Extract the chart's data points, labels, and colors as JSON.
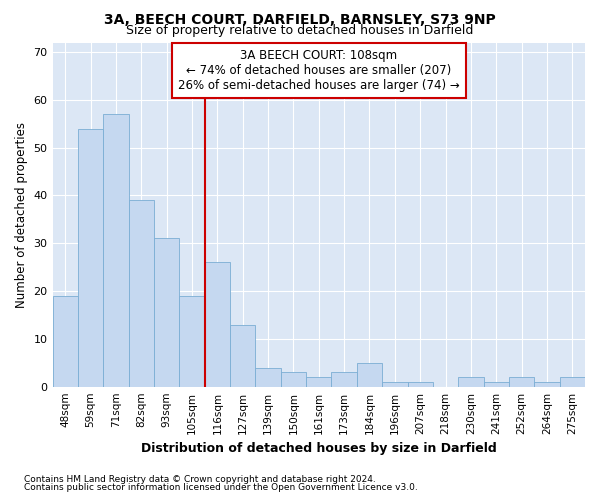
{
  "title1": "3A, BEECH COURT, DARFIELD, BARNSLEY, S73 9NP",
  "title2": "Size of property relative to detached houses in Darfield",
  "xlabel": "Distribution of detached houses by size in Darfield",
  "ylabel": "Number of detached properties",
  "footnote1": "Contains HM Land Registry data © Crown copyright and database right 2024.",
  "footnote2": "Contains public sector information licensed under the Open Government Licence v3.0.",
  "categories": [
    "48sqm",
    "59sqm",
    "71sqm",
    "82sqm",
    "93sqm",
    "105sqm",
    "116sqm",
    "127sqm",
    "139sqm",
    "150sqm",
    "161sqm",
    "173sqm",
    "184sqm",
    "196sqm",
    "207sqm",
    "218sqm",
    "230sqm",
    "241sqm",
    "252sqm",
    "264sqm",
    "275sqm"
  ],
  "values": [
    19,
    54,
    57,
    39,
    31,
    19,
    26,
    13,
    4,
    3,
    2,
    3,
    5,
    1,
    1,
    0,
    2,
    1,
    2,
    1,
    2
  ],
  "bar_color": "#c5d8f0",
  "bar_edge_color": "#7aadd4",
  "bg_color": "#dce7f5",
  "grid_color": "#ffffff",
  "fig_bg_color": "#ffffff",
  "vline_x": 5.5,
  "vline_color": "#cc0000",
  "annotation_text": "3A BEECH COURT: 108sqm\n← 74% of detached houses are smaller (207)\n26% of semi-detached houses are larger (74) →",
  "annotation_box_edge_color": "#cc0000",
  "ylim": [
    0,
    72
  ],
  "yticks": [
    0,
    10,
    20,
    30,
    40,
    50,
    60,
    70
  ]
}
